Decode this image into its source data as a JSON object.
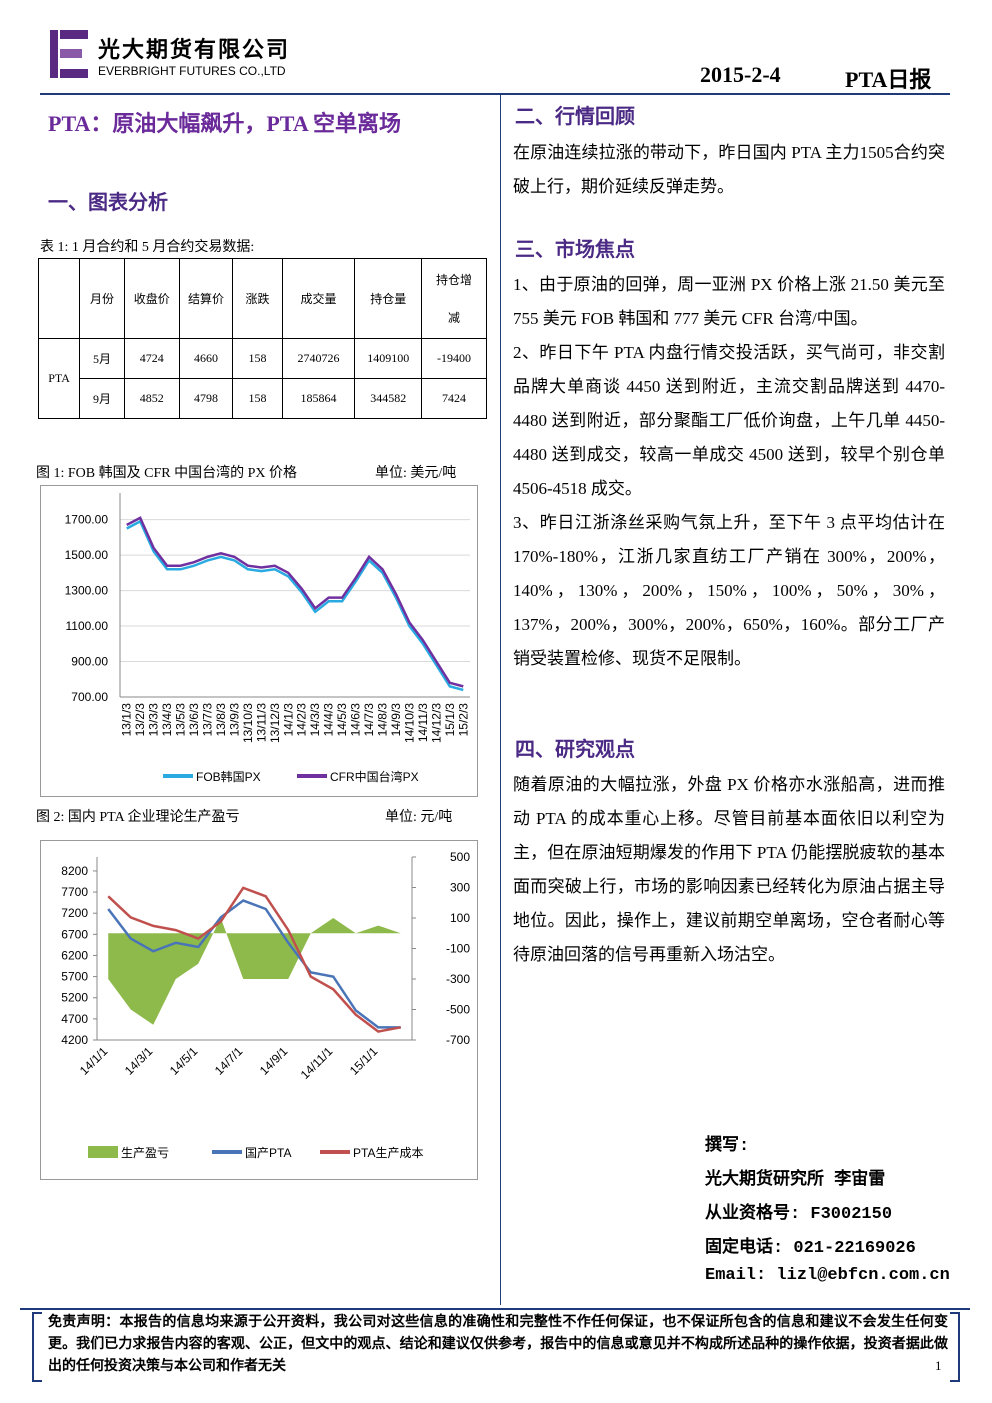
{
  "header": {
    "company_cn": "光大期货有限公司",
    "company_en": "EVERBRIGHT FUTURES CO.,LTD",
    "date": "2015-2-4",
    "report": "PTA日报"
  },
  "title": "PTA：原油大幅飙升，PTA 空单离场",
  "left_heading": "一、图表分析",
  "table": {
    "caption": "表 1: 1 月合约和 5 月合约交易数据:",
    "header": [
      "月份",
      "收盘价",
      "结算价",
      "涨跌",
      "成交量",
      "持仓量",
      "持仓增减"
    ],
    "row_label": "PTA",
    "rows": [
      [
        "5月",
        4724,
        4660,
        158,
        2740726,
        1409100,
        -19400
      ],
      [
        "9月",
        4852,
        4798,
        158,
        185864,
        344582,
        7424
      ]
    ]
  },
  "chart_data": [
    {
      "type": "line",
      "title": "图 1: FOB 韩国及 CFR 中国台湾的 PX 价格",
      "subtitle": "单位: 美元/吨",
      "categories": [
        "13/1/3",
        "13/2/3",
        "13/3/3",
        "13/4/3",
        "13/5/3",
        "13/6/3",
        "13/7/3",
        "13/8/3",
        "13/9/3",
        "13/10/3",
        "13/11/3",
        "13/12/3",
        "14/1/3",
        "14/2/3",
        "14/3/3",
        "14/4/3",
        "14/5/3",
        "14/6/3",
        "14/7/3",
        "14/8/3",
        "14/9/3",
        "14/10/3",
        "14/11/3",
        "14/12/3",
        "15/1/3",
        "15/2/3"
      ],
      "series": [
        {
          "name": "FOB韩国PX",
          "color": "#29abe2",
          "values": [
            1650,
            1690,
            1520,
            1420,
            1420,
            1440,
            1470,
            1490,
            1470,
            1420,
            1410,
            1420,
            1380,
            1290,
            1180,
            1240,
            1240,
            1350,
            1470,
            1400,
            1260,
            1100,
            1000,
            880,
            760,
            740
          ]
        },
        {
          "name": "CFR中国台湾PX",
          "color": "#7030a0",
          "values": [
            1670,
            1710,
            1540,
            1440,
            1440,
            1460,
            1490,
            1510,
            1490,
            1440,
            1430,
            1440,
            1400,
            1310,
            1200,
            1260,
            1260,
            1370,
            1490,
            1420,
            1280,
            1120,
            1020,
            900,
            780,
            760
          ]
        }
      ],
      "ylim": [
        700,
        1850
      ],
      "yticks": [
        {
          "value": 700,
          "label": "700.00"
        },
        {
          "value": 900,
          "label": "900.00"
        },
        {
          "value": 1100,
          "label": "1100.00"
        },
        {
          "value": 1300,
          "label": "1300.00"
        },
        {
          "value": 1500,
          "label": "1500.00"
        },
        {
          "value": 1700,
          "label": "1700.00"
        }
      ],
      "grid": true
    },
    {
      "type": "line",
      "title": "图 2: 国内 PTA 企业理论生产盈亏",
      "subtitle": "单位: 元/吨",
      "categories": [
        "14/1/1",
        null,
        "14/3/1",
        null,
        "14/5/1",
        null,
        "14/7/1",
        null,
        "14/9/1",
        null,
        "14/11/1",
        null,
        "15/1/1",
        null
      ],
      "series": [
        {
          "name": "生产盈亏",
          "type": "area",
          "axis": "y2",
          "color": "#8dba4a",
          "values": [
            -300,
            -500,
            -600,
            -300,
            -200,
            100,
            -300,
            -300,
            -300,
            0,
            100,
            0,
            50,
            0
          ]
        },
        {
          "name": "国产PTA",
          "color": "#4a74b8",
          "values": [
            7300,
            6600,
            6300,
            6500,
            6400,
            7100,
            7500,
            7300,
            6500,
            5800,
            5700,
            4900,
            4500,
            4500
          ]
        },
        {
          "name": "PTA生产成本",
          "color": "#c0504d",
          "values": [
            7600,
            7100,
            6900,
            6800,
            6600,
            7000,
            7800,
            7600,
            6800,
            5700,
            5400,
            4800,
            4400,
            4500
          ]
        }
      ],
      "ylim": [
        4200,
        8530
      ],
      "yticks": [
        4200,
        4700,
        5200,
        5700,
        6200,
        6700,
        7200,
        7700,
        8200
      ],
      "y2lim": [
        -700,
        500
      ],
      "y2ticks": [
        -700,
        -500,
        -300,
        -100,
        100,
        300,
        500
      ],
      "grid": false
    }
  ],
  "right_sections": [
    {
      "heading": "二、行情回顾",
      "paragraphs": [
        "在原油连续拉涨的带动下，昨日国内 PTA 主力1505合约突破上行，期价延续反弹走势。"
      ]
    },
    {
      "heading": "三、市场焦点",
      "paragraphs": [
        "1、由于原油的回弹，周一亚洲 PX 价格上涨 21.50 美元至 755 美元 FOB 韩国和 777 美元 CFR 台湾/中国。",
        "2、昨日下午 PTA 内盘行情交投活跃，买气尚可，非交割品牌大单商谈 4450 送到附近，主流交割品牌送到 4470-4480 送到附近，部分聚酯工厂低价询盘，上午几单 4450-4480 送到成交，较高一单成交 4500 送到，较早个别仓单 4506-4518 成交。",
        "3、昨日江浙涤丝采购气氛上升，至下午 3 点平均估计在 170%-180%，江浙几家直纺工厂产销在 300%，200%，140%，130%，200%，150%，100%，50%，30%，137%，200%，300%，200%，650%，160%。部分工厂产销受装置检修、现货不足限制。"
      ]
    },
    {
      "heading": "四、研究观点",
      "paragraphs": [
        "随着原油的大幅拉涨，外盘 PX 价格亦水涨船高，进而推动 PTA 的成本重心上移。尽管目前基本面依旧以利空为主，但在原油短期爆发的作用下 PTA 仍能摆脱疲软的基本面而突破上行，市场的影响因素已经转化为原油占据主导地位。因此，操作上，建议前期空单离场，空仓者耐心等待原油回落的信号再重新入场沽空。"
      ]
    }
  ],
  "author": [
    "撰写:",
    "光大期货研究所 李宙雷",
    "从业资格号: F3002150",
    "固定电话: 021-22169026",
    "Email: lizl@ebfcn.com.cn"
  ],
  "footer": {
    "disclaimer": "免责声明：本报告的信息均来源于公开资料，我公司对这些信息的准确性和完整性不作任何保证，也不保证所包含的信息和建议不会发生任何变更。我们已力求报告内容的客观、公正，但文中的观点、结论和建议仅供参考，报告中的信息或意见并不构成所述品种的操作依据，投资者据此做出的任何投资决策与本公司和作者无关",
    "page": 1
  }
}
